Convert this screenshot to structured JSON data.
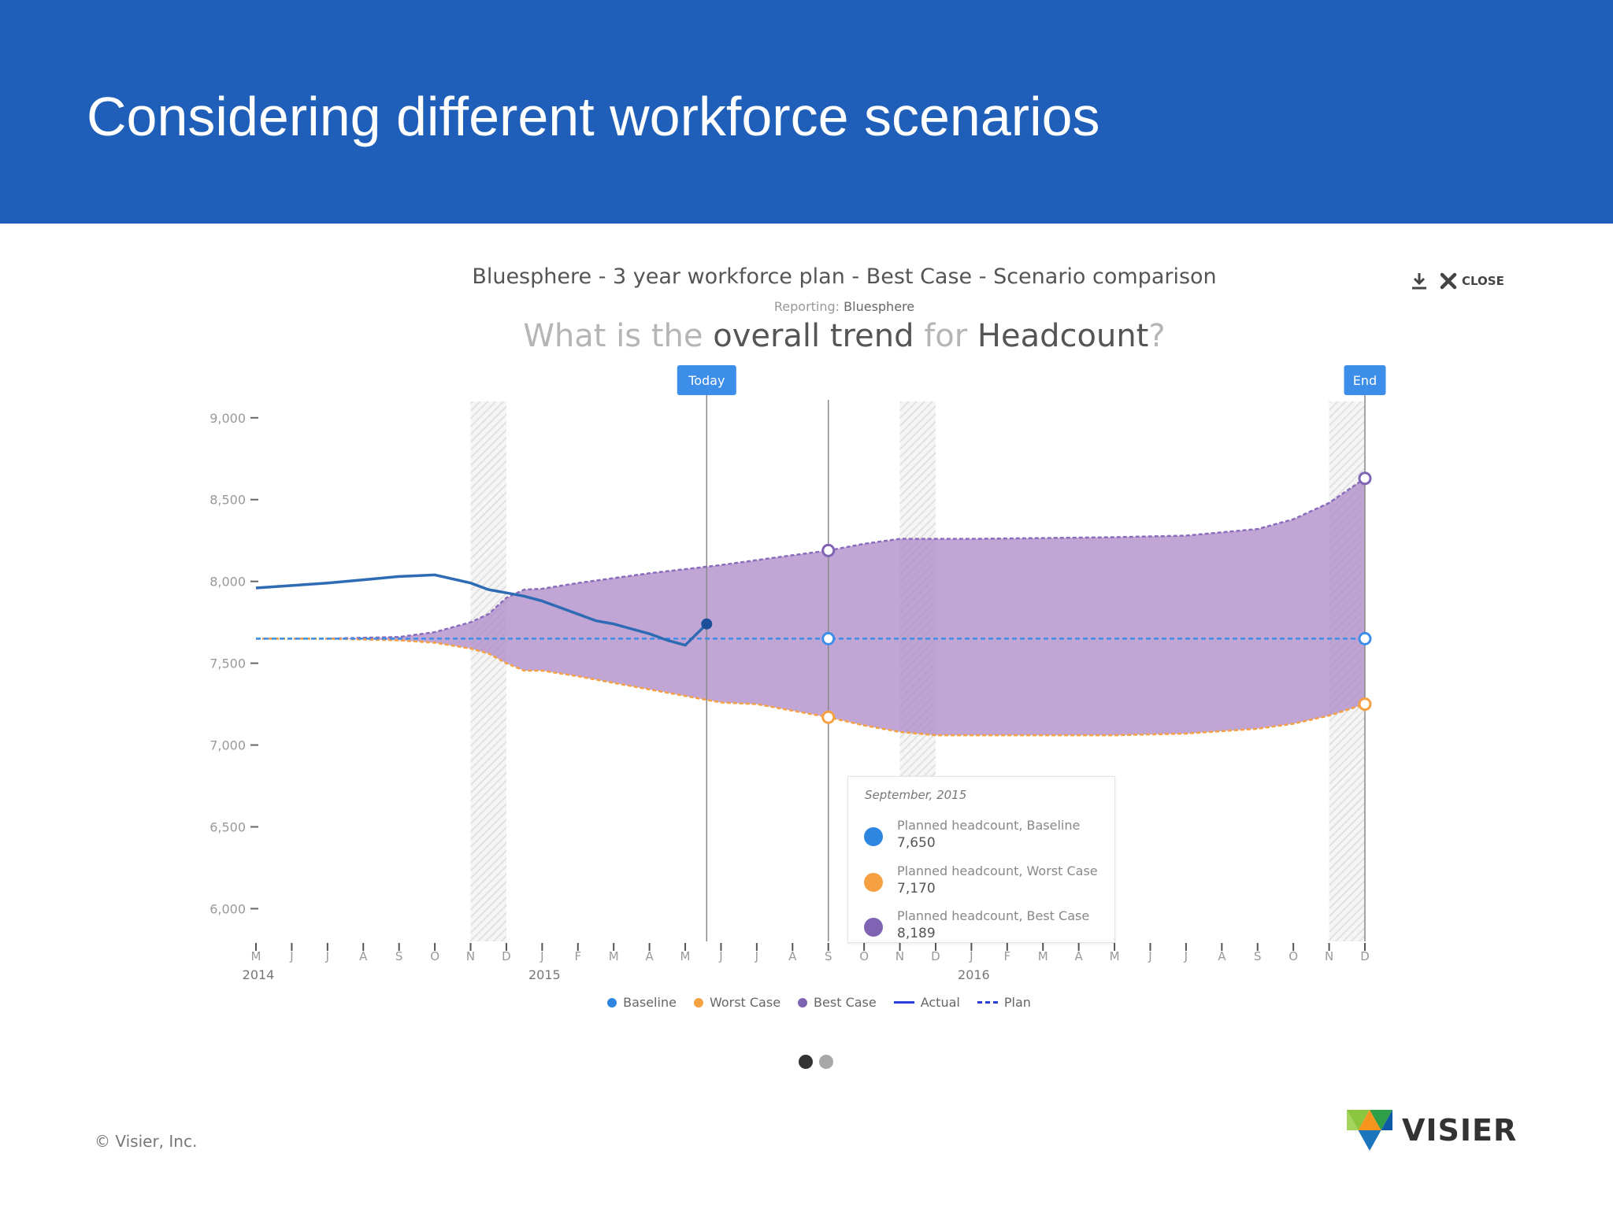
{
  "slide": {
    "title": "Considering different workforce scenarios",
    "copyright": "© Visier, Inc.",
    "logo_text": "VISIER"
  },
  "chart_header": {
    "title": "Bluesphere - 3 year workforce plan - Best Case - Scenario comparison",
    "reporting_label": "Reporting:",
    "reporting_value": "Bluesphere",
    "question_part1": "What is the ",
    "question_part2": "overall trend",
    "question_part3": " for ",
    "question_part4": "Headcount",
    "question_part5": "?"
  },
  "toolbar": {
    "download_icon": "download-icon",
    "close_icon": "close-icon",
    "close_label": "CLOSE"
  },
  "tooltip": {
    "date": "September, 2015",
    "rows": [
      {
        "label": "Planned headcount, Baseline",
        "value": "7,650",
        "color": "#2f86e0"
      },
      {
        "label": "Planned headcount, Worst Case",
        "value": "7,170",
        "color": "#f5a142"
      },
      {
        "label": "Planned headcount, Best Case",
        "value": "8,189",
        "color": "#7f64b4"
      }
    ]
  },
  "legend": [
    {
      "label": "Baseline",
      "kind": "dot",
      "color": "#2f86e0"
    },
    {
      "label": "Worst Case",
      "kind": "dot",
      "color": "#f5a142"
    },
    {
      "label": "Best Case",
      "kind": "dot",
      "color": "#7f64b4"
    },
    {
      "label": "Actual",
      "kind": "line",
      "color": "#2b3fd6"
    },
    {
      "label": "Plan",
      "kind": "dash",
      "color": "#2b3fd6"
    }
  ],
  "pager": {
    "count": 2,
    "active": 0
  },
  "chart_data": {
    "type": "area",
    "title": "Bluesphere - 3 year workforce plan - Best Case - Scenario comparison",
    "ylim": [
      5800,
      9100
    ],
    "yticks": [
      6000,
      6500,
      7000,
      7500,
      8000,
      8500,
      9000
    ],
    "ytick_labels": [
      "6,000",
      "6,500",
      "7,000",
      "7,500",
      "8,000",
      "8,500",
      "9,000"
    ],
    "xlim": [
      0,
      31
    ],
    "xticks": [
      "M",
      "J",
      "J",
      "A",
      "S",
      "O",
      "N",
      "D",
      "J",
      "F",
      "M",
      "A",
      "M",
      "J",
      "J",
      "A",
      "S",
      "O",
      "N",
      "D",
      "J",
      "F",
      "M",
      "A",
      "M",
      "J",
      "J",
      "A",
      "S",
      "O",
      "N",
      "D"
    ],
    "year_labels": [
      {
        "label": "2014",
        "at": 0
      },
      {
        "label": "2015",
        "at": 8
      },
      {
        "label": "2016",
        "at": 20
      }
    ],
    "markers": [
      {
        "label": "Today",
        "x": 12.6
      },
      {
        "label": "End",
        "x": 31
      }
    ],
    "selected_x": 16,
    "hatched_x": [
      6.5,
      18.5,
      30.5
    ],
    "grid": false,
    "legend_position": "bottom",
    "series": [
      {
        "name": "Best Case",
        "color": "#7f64b4",
        "points": [
          [
            0,
            7650
          ],
          [
            2,
            7650
          ],
          [
            4,
            7660
          ],
          [
            5,
            7690
          ],
          [
            6,
            7750
          ],
          [
            6.5,
            7800
          ],
          [
            7,
            7900
          ],
          [
            7.5,
            7950
          ],
          [
            8,
            7955
          ],
          [
            9,
            7990
          ],
          [
            10,
            8020
          ],
          [
            11,
            8050
          ],
          [
            12,
            8075
          ],
          [
            13,
            8100
          ],
          [
            14,
            8130
          ],
          [
            15,
            8160
          ],
          [
            16,
            8189
          ],
          [
            17,
            8230
          ],
          [
            18,
            8260
          ],
          [
            20,
            8260
          ],
          [
            22,
            8265
          ],
          [
            24,
            8270
          ],
          [
            26,
            8280
          ],
          [
            28,
            8320
          ],
          [
            29,
            8380
          ],
          [
            30,
            8480
          ],
          [
            31,
            8630
          ]
        ]
      },
      {
        "name": "Worst Case",
        "color": "#f5a142",
        "points": [
          [
            0,
            7650
          ],
          [
            2,
            7650
          ],
          [
            4,
            7640
          ],
          [
            5,
            7625
          ],
          [
            6,
            7590
          ],
          [
            6.5,
            7560
          ],
          [
            7,
            7500
          ],
          [
            7.5,
            7455
          ],
          [
            8,
            7455
          ],
          [
            9,
            7420
          ],
          [
            10,
            7380
          ],
          [
            11,
            7340
          ],
          [
            12,
            7300
          ],
          [
            13,
            7260
          ],
          [
            14,
            7250
          ],
          [
            15,
            7210
          ],
          [
            16,
            7170
          ],
          [
            17,
            7120
          ],
          [
            18,
            7080
          ],
          [
            19,
            7060
          ],
          [
            20,
            7060
          ],
          [
            24,
            7060
          ],
          [
            26,
            7070
          ],
          [
            28,
            7100
          ],
          [
            29,
            7130
          ],
          [
            30,
            7180
          ],
          [
            31,
            7250
          ]
        ]
      },
      {
        "name": "Baseline",
        "color": "#2f86e0",
        "points": [
          [
            0,
            7650
          ],
          [
            4,
            7650
          ],
          [
            8,
            7650
          ],
          [
            12,
            7650
          ],
          [
            16,
            7650
          ],
          [
            20,
            7650
          ],
          [
            24,
            7650
          ],
          [
            28,
            7650
          ],
          [
            31,
            7650
          ]
        ]
      },
      {
        "name": "Actual",
        "color": "#2e6bb4",
        "points": [
          [
            0,
            7960
          ],
          [
            1,
            7975
          ],
          [
            2,
            7990
          ],
          [
            3,
            8010
          ],
          [
            4,
            8030
          ],
          [
            5,
            8040
          ],
          [
            6,
            7990
          ],
          [
            6.5,
            7950
          ],
          [
            7,
            7930
          ],
          [
            7.5,
            7910
          ],
          [
            8,
            7880
          ],
          [
            8.5,
            7840
          ],
          [
            9,
            7800
          ],
          [
            9.5,
            7760
          ],
          [
            10,
            7740
          ],
          [
            10.5,
            7710
          ],
          [
            11,
            7680
          ],
          [
            11.5,
            7640
          ],
          [
            12,
            7610
          ],
          [
            12.6,
            7740
          ]
        ]
      }
    ]
  }
}
